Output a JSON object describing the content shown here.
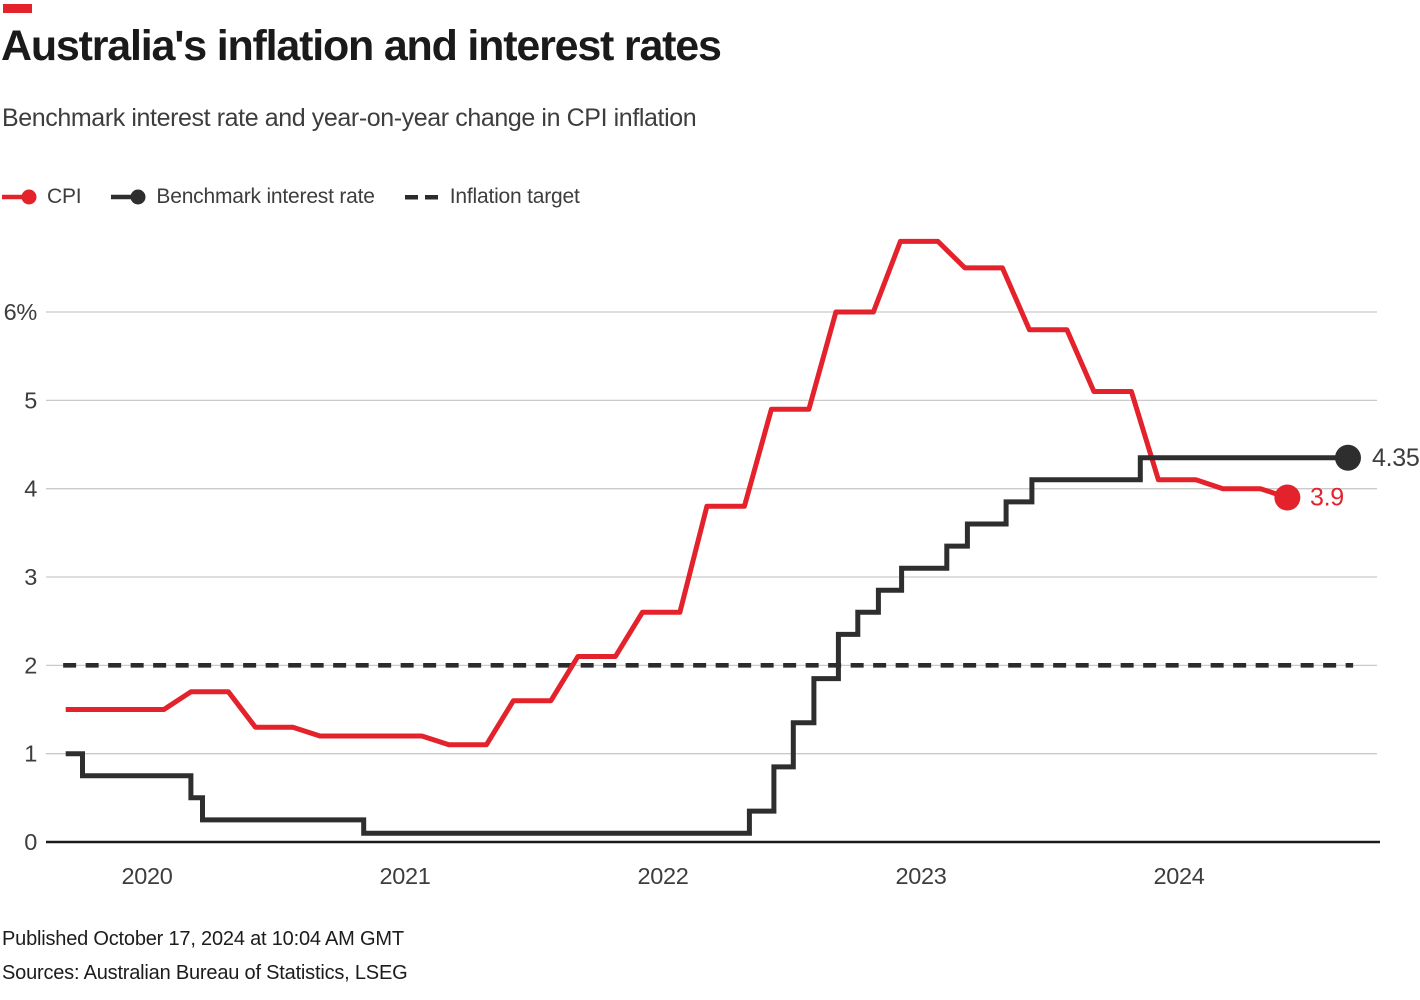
{
  "brand": {
    "kicker_color": "#e3222c"
  },
  "header": {
    "title": "Australia's inflation and interest rates",
    "subtitle": "Benchmark interest rate and year-on-year change in CPI inflation"
  },
  "legend": [
    {
      "id": "cpi",
      "label": "CPI",
      "color": "#e3222c",
      "marker": "line-dot"
    },
    {
      "id": "benchmark",
      "label": "Benchmark interest rate",
      "color": "#2e2e2e",
      "marker": "line-dot"
    },
    {
      "id": "inflation-target",
      "label": "Inflation target",
      "color": "#2b2b2b",
      "marker": "dashes"
    }
  ],
  "chart_data": {
    "type": "line",
    "title": "Australia's inflation and interest rates",
    "subtitle": "Benchmark interest rate and year-on-year change in CPI inflation",
    "x_axis": {
      "ticks": [
        2020,
        2021,
        2022,
        2023,
        2024
      ],
      "range": [
        2019.66,
        2024.77
      ],
      "unit": "year"
    },
    "y_axis": {
      "ticks": [
        {
          "v": 0,
          "label": "0"
        },
        {
          "v": 1,
          "label": "1"
        },
        {
          "v": 2,
          "label": "2"
        },
        {
          "v": 3,
          "label": "3"
        },
        {
          "v": 4,
          "label": "4"
        },
        {
          "v": 5,
          "label": "5"
        },
        {
          "v": 6,
          "label": "6%"
        }
      ],
      "range": [
        0,
        6.9
      ],
      "grid": true,
      "unit": "percent"
    },
    "legend_position": "top-left",
    "series": [
      {
        "name": "CPI",
        "color": "#e3222c",
        "style": "quarterly-ramp",
        "end_label": "3.9",
        "points": [
          [
            2019.685,
            1.5
          ],
          [
            2019.92,
            1.5
          ],
          [
            2020.17,
            1.7
          ],
          [
            2020.42,
            1.3
          ],
          [
            2020.67,
            1.2
          ],
          [
            2020.92,
            1.2
          ],
          [
            2021.17,
            1.1
          ],
          [
            2021.42,
            1.6
          ],
          [
            2021.67,
            2.1
          ],
          [
            2021.92,
            2.6
          ],
          [
            2022.17,
            3.8
          ],
          [
            2022.42,
            4.9
          ],
          [
            2022.67,
            6.0
          ],
          [
            2022.92,
            6.8
          ],
          [
            2023.17,
            6.5
          ],
          [
            2023.42,
            5.8
          ],
          [
            2023.67,
            5.1
          ],
          [
            2023.92,
            4.1
          ],
          [
            2024.17,
            4.0
          ],
          [
            2024.42,
            3.9
          ]
        ]
      },
      {
        "name": "Benchmark interest rate",
        "color": "#2e2e2e",
        "style": "step",
        "end_label": "4.35",
        "end_t": 2024.655,
        "points": [
          [
            2019.685,
            1.0
          ],
          [
            2019.75,
            0.75
          ],
          [
            2020.17,
            0.5
          ],
          [
            2020.215,
            0.25
          ],
          [
            2020.84,
            0.1
          ],
          [
            2022.335,
            0.35
          ],
          [
            2022.43,
            0.85
          ],
          [
            2022.505,
            1.35
          ],
          [
            2022.585,
            1.85
          ],
          [
            2022.68,
            2.35
          ],
          [
            2022.755,
            2.6
          ],
          [
            2022.835,
            2.85
          ],
          [
            2022.925,
            3.1
          ],
          [
            2023.1,
            3.35
          ],
          [
            2023.18,
            3.6
          ],
          [
            2023.33,
            3.85
          ],
          [
            2023.43,
            4.1
          ],
          [
            2023.85,
            4.35
          ]
        ]
      },
      {
        "name": "Inflation target",
        "color": "#2b2b2b",
        "style": "dashed-horizontal",
        "value": 2,
        "x_start": 2019.675,
        "x_end": 2024.675
      }
    ]
  },
  "footer": {
    "published": "Published October 17, 2024 at 10:04 AM GMT",
    "sources": "Sources: Australian Bureau of Statistics, LSEG"
  }
}
